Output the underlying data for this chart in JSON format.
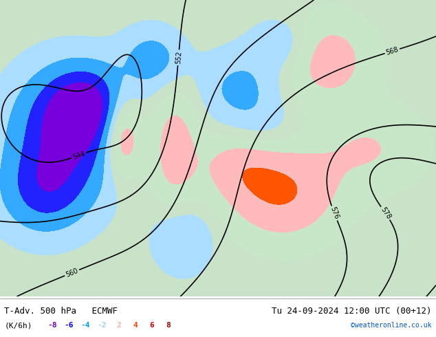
{
  "title_left": "T-Adv. 500 hPa   ECMWF",
  "title_right": "Tu 24-09-2024 12:00 UTC (00+12)",
  "unit_label": "(K/6h)",
  "legend_values": [
    -8,
    -6,
    -4,
    -2,
    2,
    4,
    6,
    8
  ],
  "legend_colors": [
    "#6600cc",
    "#0000ff",
    "#0099ff",
    "#99ccff",
    "#ffaaaa",
    "#ff4400",
    "#cc0000",
    "#990000"
  ],
  "credit": "©weatheronline.co.uk",
  "bg_color": "#e8f4e8",
  "map_bg": "#c8e6c8",
  "figure_width": 6.34,
  "figure_height": 4.9,
  "dpi": 100,
  "bottom_bar_color": "#d8d8d8",
  "bottom_text_color": "#000000",
  "credit_color": "#0055cc"
}
